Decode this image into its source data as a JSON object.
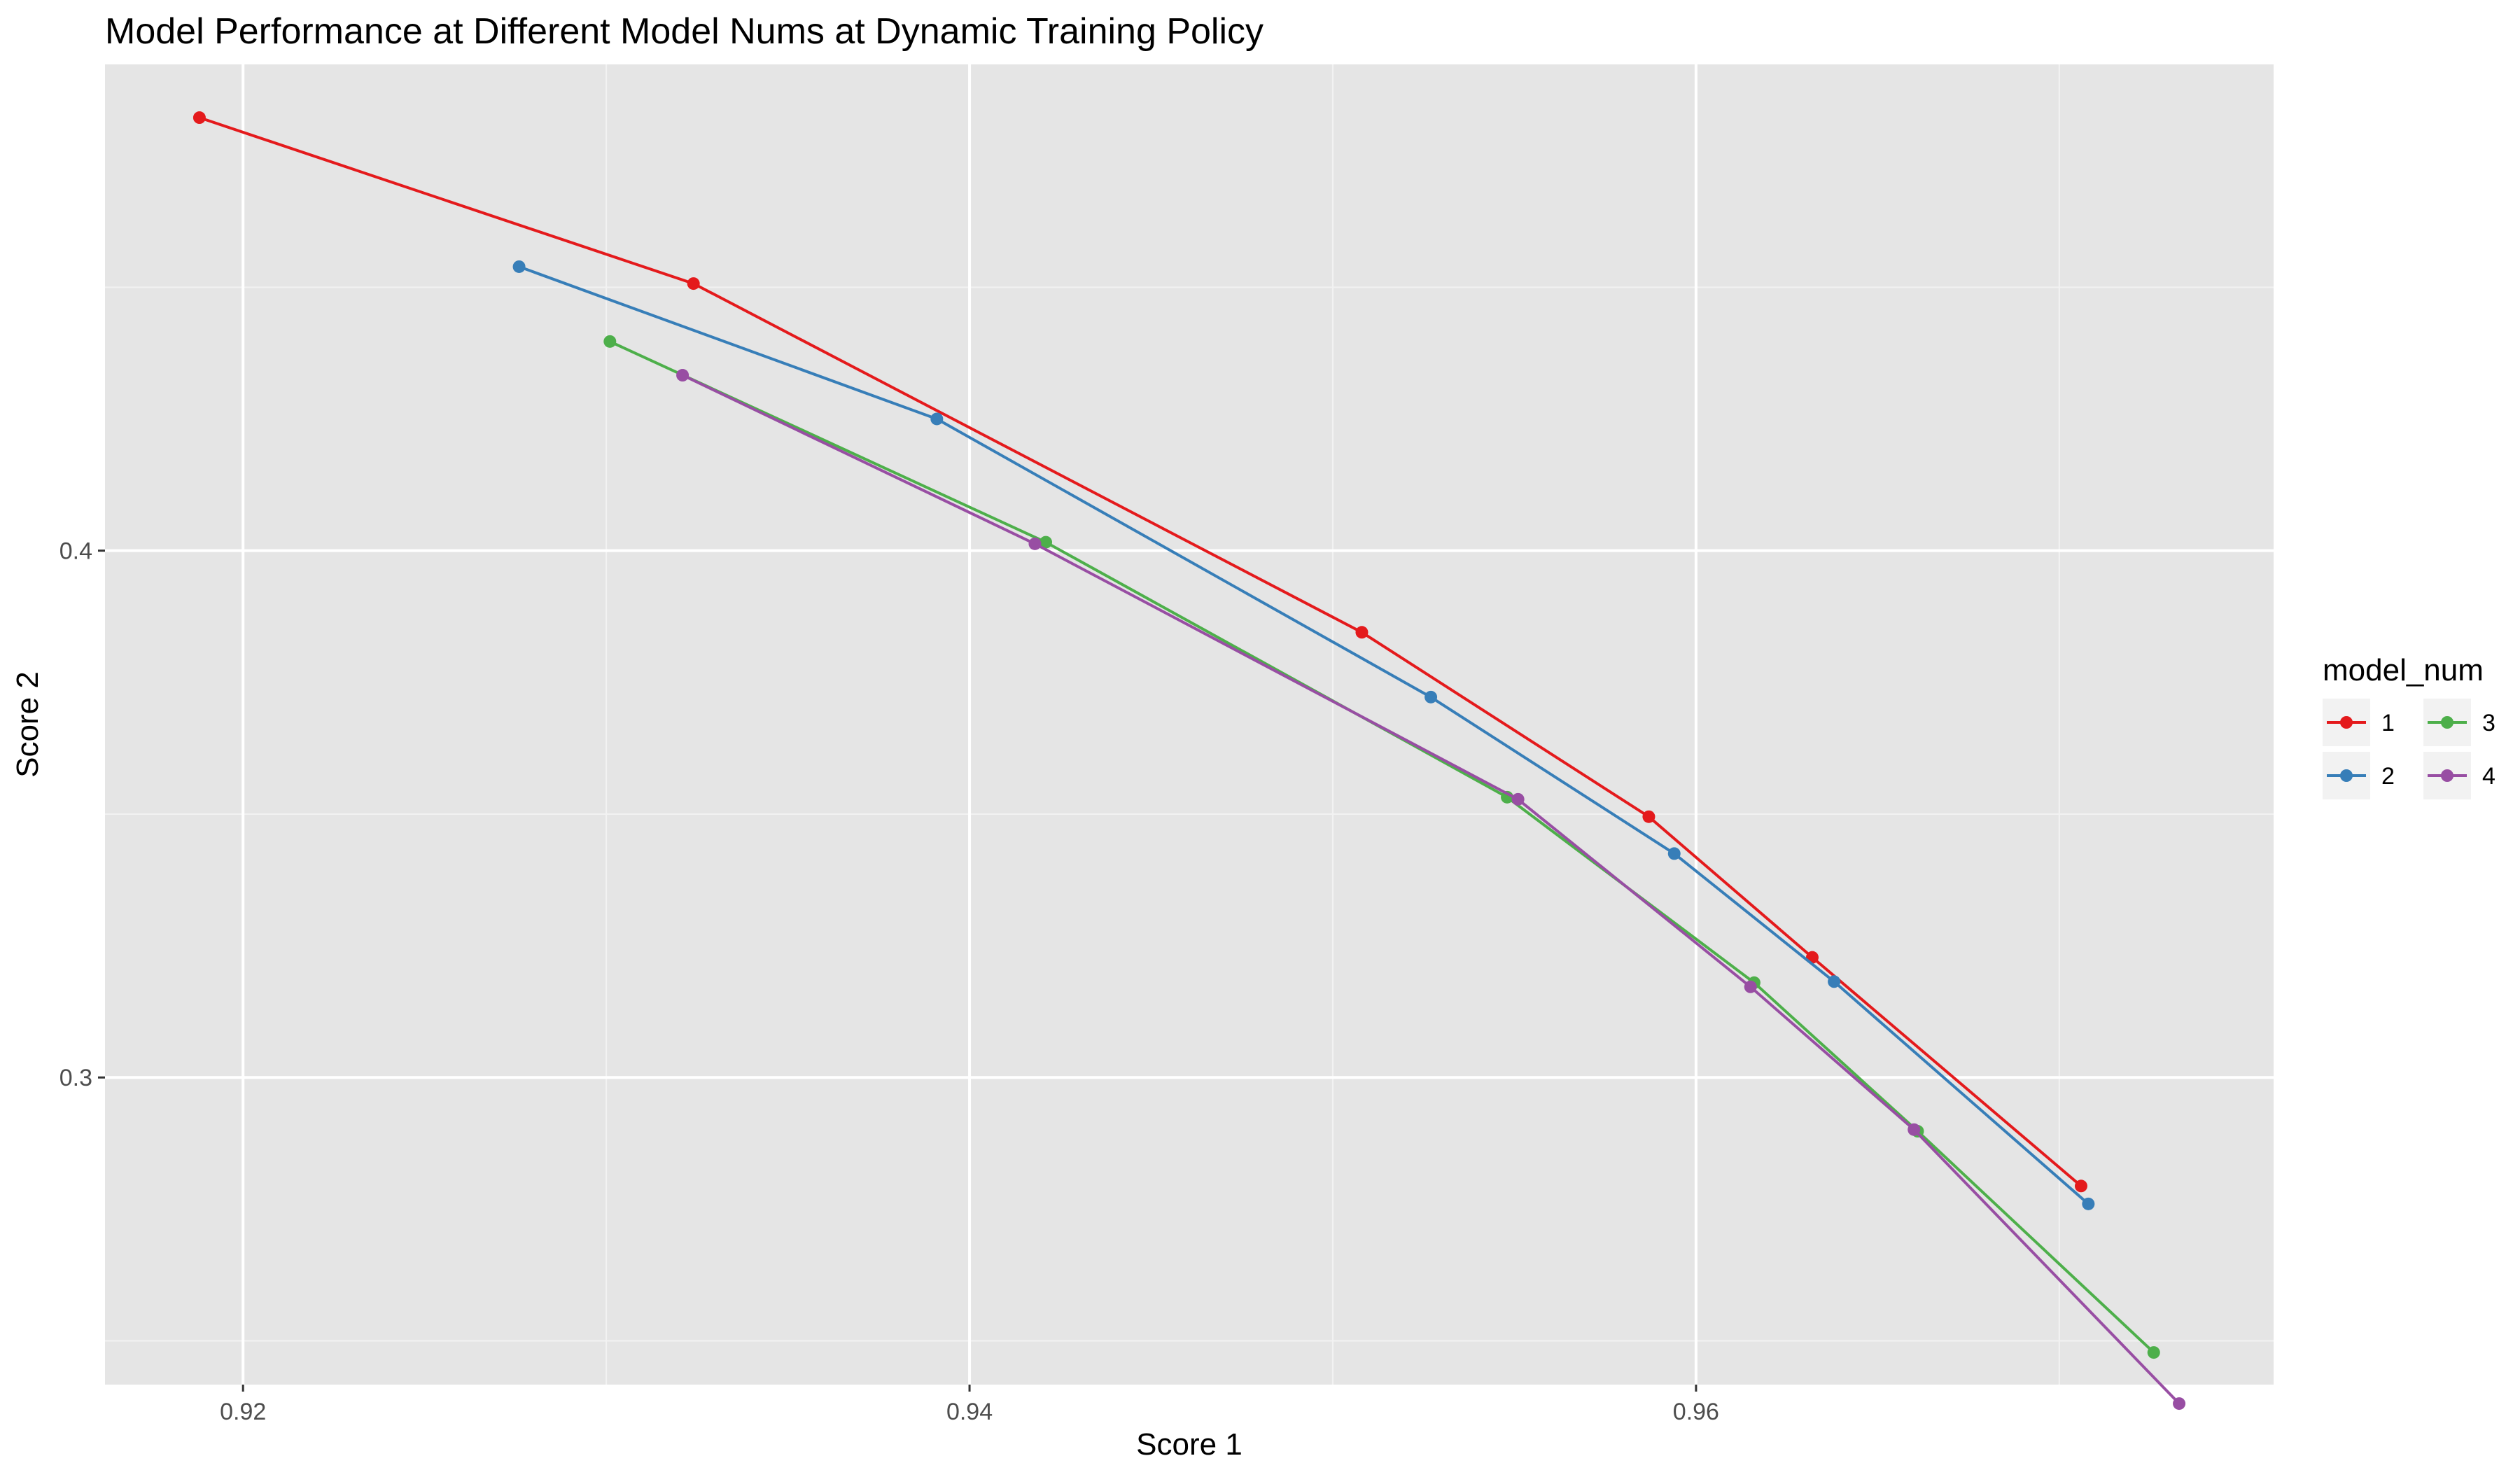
{
  "chart_data": {
    "type": "line",
    "title": "Model Performance at Different Model Nums at Dynamic Training Policy",
    "xlabel": "Score 1",
    "ylabel": "Score 2",
    "xlim": [
      0.9162,
      0.9759
    ],
    "ylim": [
      0.2417,
      0.4923
    ],
    "x_ticks": [
      0.92,
      0.94,
      0.96
    ],
    "x_tick_labels": [
      "0.92",
      "0.94",
      "0.96"
    ],
    "y_ticks": [
      0.3,
      0.4
    ],
    "y_tick_labels": [
      "0.3",
      "0.4"
    ],
    "grid": true,
    "legend": {
      "title": "model_num",
      "position": "right"
    },
    "series": [
      {
        "name": "1",
        "color": "#E41A1C",
        "points": [
          {
            "x": 0.9188,
            "y": 0.4822
          },
          {
            "x": 0.9324,
            "y": 0.4507
          },
          {
            "x": 0.9508,
            "y": 0.3845
          },
          {
            "x": 0.9587,
            "y": 0.3495
          },
          {
            "x": 0.9632,
            "y": 0.3228
          },
          {
            "x": 0.9706,
            "y": 0.2794
          }
        ]
      },
      {
        "name": "2",
        "color": "#377EB8",
        "points": [
          {
            "x": 0.9276,
            "y": 0.4539
          },
          {
            "x": 0.9391,
            "y": 0.425
          },
          {
            "x": 0.9527,
            "y": 0.3722
          },
          {
            "x": 0.9594,
            "y": 0.3425
          },
          {
            "x": 0.9638,
            "y": 0.3182
          },
          {
            "x": 0.9708,
            "y": 0.276
          }
        ]
      },
      {
        "name": "3",
        "color": "#4DAF4A",
        "points": [
          {
            "x": 0.9301,
            "y": 0.4397
          },
          {
            "x": 0.9421,
            "y": 0.4016
          },
          {
            "x": 0.9548,
            "y": 0.3532
          },
          {
            "x": 0.9616,
            "y": 0.318
          },
          {
            "x": 0.9661,
            "y": 0.2898
          },
          {
            "x": 0.9726,
            "y": 0.2478
          }
        ]
      },
      {
        "name": "4",
        "color": "#984EA3",
        "points": [
          {
            "x": 0.9321,
            "y": 0.4333
          },
          {
            "x": 0.9418,
            "y": 0.4013
          },
          {
            "x": 0.9551,
            "y": 0.3528
          },
          {
            "x": 0.9615,
            "y": 0.3172
          },
          {
            "x": 0.966,
            "y": 0.2901
          },
          {
            "x": 0.9733,
            "y": 0.2381
          }
        ]
      }
    ]
  }
}
